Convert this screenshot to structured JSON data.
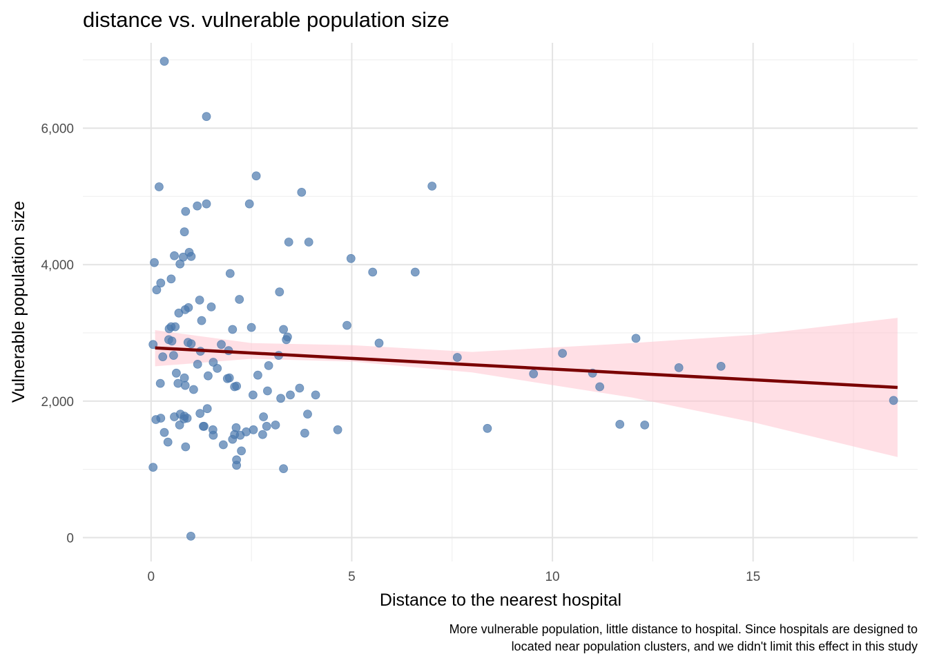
{
  "chart_data": {
    "type": "scatter",
    "title": "distance vs. vulnerable population size",
    "xlabel": "Distance to the nearest hospital",
    "ylabel": "Vulnerable population size",
    "caption_lines": [
      "More vulnerable population, little distance to hospital. Since hospitals are designed to",
      "located near population clusters, and we didn't limit this effect in this study"
    ],
    "xlim": [
      -1.7,
      19.1
    ],
    "ylim": [
      -350,
      7250
    ],
    "x_ticks": [
      0,
      5,
      10,
      15
    ],
    "x_tick_labels": [
      "0",
      "5",
      "10",
      "15"
    ],
    "y_ticks": [
      0,
      2000,
      4000,
      6000
    ],
    "y_tick_labels": [
      "0",
      "2,000",
      "4,000",
      "6,000"
    ],
    "x_minor_ticks": [
      2.5,
      7.5,
      12.5,
      17.5
    ],
    "y_minor_ticks": [
      1000,
      3000,
      5000,
      7000
    ],
    "grid": true,
    "legend": "none",
    "colors": {
      "points": "#4a78ad",
      "trend_line": "#7a0000",
      "confidence_band": "#ffc0cb"
    },
    "trend": {
      "method": "linear",
      "x": [
        0.1,
        18.6
      ],
      "y": [
        2780,
        2200
      ]
    },
    "confidence_band": {
      "x": [
        0.1,
        2.5,
        5.0,
        8.0,
        12.0,
        15.0,
        18.6
      ],
      "lower": [
        2510,
        2620,
        2580,
        2420,
        2050,
        1690,
        1180
      ],
      "upper": [
        3040,
        2850,
        2820,
        2720,
        2850,
        2970,
        3220
      ]
    },
    "series": [
      {
        "points": [
          {
            "x": 0.33,
            "y": 6980
          },
          {
            "x": 1.38,
            "y": 6170
          },
          {
            "x": 2.62,
            "y": 5300
          },
          {
            "x": 0.2,
            "y": 5140
          },
          {
            "x": 7.0,
            "y": 5150
          },
          {
            "x": 3.75,
            "y": 5060
          },
          {
            "x": 1.38,
            "y": 4890
          },
          {
            "x": 1.15,
            "y": 4860
          },
          {
            "x": 2.45,
            "y": 4890
          },
          {
            "x": 0.86,
            "y": 4780
          },
          {
            "x": 0.83,
            "y": 4480
          },
          {
            "x": 3.43,
            "y": 4330
          },
          {
            "x": 3.93,
            "y": 4330
          },
          {
            "x": 0.95,
            "y": 4180
          },
          {
            "x": 0.58,
            "y": 4130
          },
          {
            "x": 0.8,
            "y": 4110
          },
          {
            "x": 1.0,
            "y": 4120
          },
          {
            "x": 4.98,
            "y": 4090
          },
          {
            "x": 0.08,
            "y": 4030
          },
          {
            "x": 0.72,
            "y": 4010
          },
          {
            "x": 5.52,
            "y": 3890
          },
          {
            "x": 6.58,
            "y": 3890
          },
          {
            "x": 1.97,
            "y": 3870
          },
          {
            "x": 0.5,
            "y": 3790
          },
          {
            "x": 0.24,
            "y": 3730
          },
          {
            "x": 0.14,
            "y": 3630
          },
          {
            "x": 3.2,
            "y": 3600
          },
          {
            "x": 2.2,
            "y": 3490
          },
          {
            "x": 1.21,
            "y": 3480
          },
          {
            "x": 1.5,
            "y": 3380
          },
          {
            "x": 0.93,
            "y": 3370
          },
          {
            "x": 0.85,
            "y": 3340
          },
          {
            "x": 0.69,
            "y": 3290
          },
          {
            "x": 1.26,
            "y": 3180
          },
          {
            "x": 4.88,
            "y": 3110
          },
          {
            "x": 0.5,
            "y": 3090
          },
          {
            "x": 0.6,
            "y": 3090
          },
          {
            "x": 2.5,
            "y": 3080
          },
          {
            "x": 0.45,
            "y": 3060
          },
          {
            "x": 2.03,
            "y": 3050
          },
          {
            "x": 3.3,
            "y": 3050
          },
          {
            "x": 3.4,
            "y": 2940
          },
          {
            "x": 3.37,
            "y": 2900
          },
          {
            "x": 12.08,
            "y": 2920
          },
          {
            "x": 0.44,
            "y": 2900
          },
          {
            "x": 0.52,
            "y": 2880
          },
          {
            "x": 0.92,
            "y": 2860
          },
          {
            "x": 1.0,
            "y": 2840
          },
          {
            "x": 5.68,
            "y": 2850
          },
          {
            "x": 1.75,
            "y": 2830
          },
          {
            "x": 0.05,
            "y": 2830
          },
          {
            "x": 1.93,
            "y": 2740
          },
          {
            "x": 1.23,
            "y": 2730
          },
          {
            "x": 10.25,
            "y": 2700
          },
          {
            "x": 0.29,
            "y": 2650
          },
          {
            "x": 0.56,
            "y": 2670
          },
          {
            "x": 3.18,
            "y": 2670
          },
          {
            "x": 7.63,
            "y": 2640
          },
          {
            "x": 1.55,
            "y": 2570
          },
          {
            "x": 1.16,
            "y": 2540
          },
          {
            "x": 2.93,
            "y": 2520
          },
          {
            "x": 14.2,
            "y": 2510
          },
          {
            "x": 13.15,
            "y": 2490
          },
          {
            "x": 1.65,
            "y": 2480
          },
          {
            "x": 0.63,
            "y": 2410
          },
          {
            "x": 11.0,
            "y": 2410
          },
          {
            "x": 9.53,
            "y": 2400
          },
          {
            "x": 2.66,
            "y": 2380
          },
          {
            "x": 1.42,
            "y": 2370
          },
          {
            "x": 0.83,
            "y": 2340
          },
          {
            "x": 1.9,
            "y": 2330
          },
          {
            "x": 1.95,
            "y": 2340
          },
          {
            "x": 0.23,
            "y": 2260
          },
          {
            "x": 0.67,
            "y": 2260
          },
          {
            "x": 0.85,
            "y": 2230
          },
          {
            "x": 2.13,
            "y": 2220
          },
          {
            "x": 2.08,
            "y": 2210
          },
          {
            "x": 11.18,
            "y": 2210
          },
          {
            "x": 3.7,
            "y": 2190
          },
          {
            "x": 1.06,
            "y": 2170
          },
          {
            "x": 2.9,
            "y": 2150
          },
          {
            "x": 2.54,
            "y": 2090
          },
          {
            "x": 3.47,
            "y": 2090
          },
          {
            "x": 4.1,
            "y": 2090
          },
          {
            "x": 3.23,
            "y": 2040
          },
          {
            "x": 18.5,
            "y": 2010
          },
          {
            "x": 1.4,
            "y": 1890
          },
          {
            "x": 0.73,
            "y": 1810
          },
          {
            "x": 1.22,
            "y": 1820
          },
          {
            "x": 3.9,
            "y": 1810
          },
          {
            "x": 0.83,
            "y": 1780
          },
          {
            "x": 0.58,
            "y": 1770
          },
          {
            "x": 2.8,
            "y": 1770
          },
          {
            "x": 0.9,
            "y": 1750
          },
          {
            "x": 0.82,
            "y": 1740
          },
          {
            "x": 0.24,
            "y": 1750
          },
          {
            "x": 0.12,
            "y": 1730
          },
          {
            "x": 0.71,
            "y": 1650
          },
          {
            "x": 3.1,
            "y": 1650
          },
          {
            "x": 11.68,
            "y": 1660
          },
          {
            "x": 12.3,
            "y": 1650
          },
          {
            "x": 1.3,
            "y": 1630
          },
          {
            "x": 1.32,
            "y": 1630
          },
          {
            "x": 2.12,
            "y": 1610
          },
          {
            "x": 2.88,
            "y": 1630
          },
          {
            "x": 8.38,
            "y": 1600
          },
          {
            "x": 1.54,
            "y": 1580
          },
          {
            "x": 2.55,
            "y": 1580
          },
          {
            "x": 4.65,
            "y": 1580
          },
          {
            "x": 0.33,
            "y": 1540
          },
          {
            "x": 2.37,
            "y": 1550
          },
          {
            "x": 3.83,
            "y": 1530
          },
          {
            "x": 2.08,
            "y": 1510
          },
          {
            "x": 2.22,
            "y": 1500
          },
          {
            "x": 1.55,
            "y": 1500
          },
          {
            "x": 2.78,
            "y": 1510
          },
          {
            "x": 2.03,
            "y": 1440
          },
          {
            "x": 0.42,
            "y": 1400
          },
          {
            "x": 1.8,
            "y": 1360
          },
          {
            "x": 0.86,
            "y": 1330
          },
          {
            "x": 2.25,
            "y": 1270
          },
          {
            "x": 2.13,
            "y": 1140
          },
          {
            "x": 2.13,
            "y": 1060
          },
          {
            "x": 0.05,
            "y": 1030
          },
          {
            "x": 3.3,
            "y": 1010
          },
          {
            "x": 0.99,
            "y": 20
          }
        ]
      }
    ]
  }
}
